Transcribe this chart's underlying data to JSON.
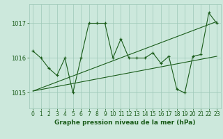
{
  "ylabel_ticks": [
    1015,
    1016,
    1017
  ],
  "xlim": [
    -0.5,
    23.5
  ],
  "ylim": [
    1014.55,
    1017.55
  ],
  "background_color": "#cce8dc",
  "grid_color": "#9ec8b8",
  "line_color": "#1a5c1a",
  "main_line_y": [
    1016.2,
    1016.0,
    1015.7,
    1015.5,
    1016.0,
    1015.0,
    1016.0,
    1017.0,
    1017.0,
    1017.0,
    1016.0,
    1016.55,
    1016.0,
    1016.0,
    1016.0,
    1016.15,
    1015.85,
    1016.05,
    1015.1,
    1015.0,
    1016.05,
    1016.1,
    1017.3,
    1017.0
  ],
  "trend_line1_x": [
    0,
    23
  ],
  "trend_line1_y": [
    1015.05,
    1017.05
  ],
  "trend_line2_x": [
    0,
    23
  ],
  "trend_line2_y": [
    1015.05,
    1016.05
  ],
  "xlabel": "Graphe pression niveau de la mer (hPa)",
  "font_color": "#1a5c1a",
  "tick_fontsize": 5.5,
  "xlabel_fontsize": 6.5
}
